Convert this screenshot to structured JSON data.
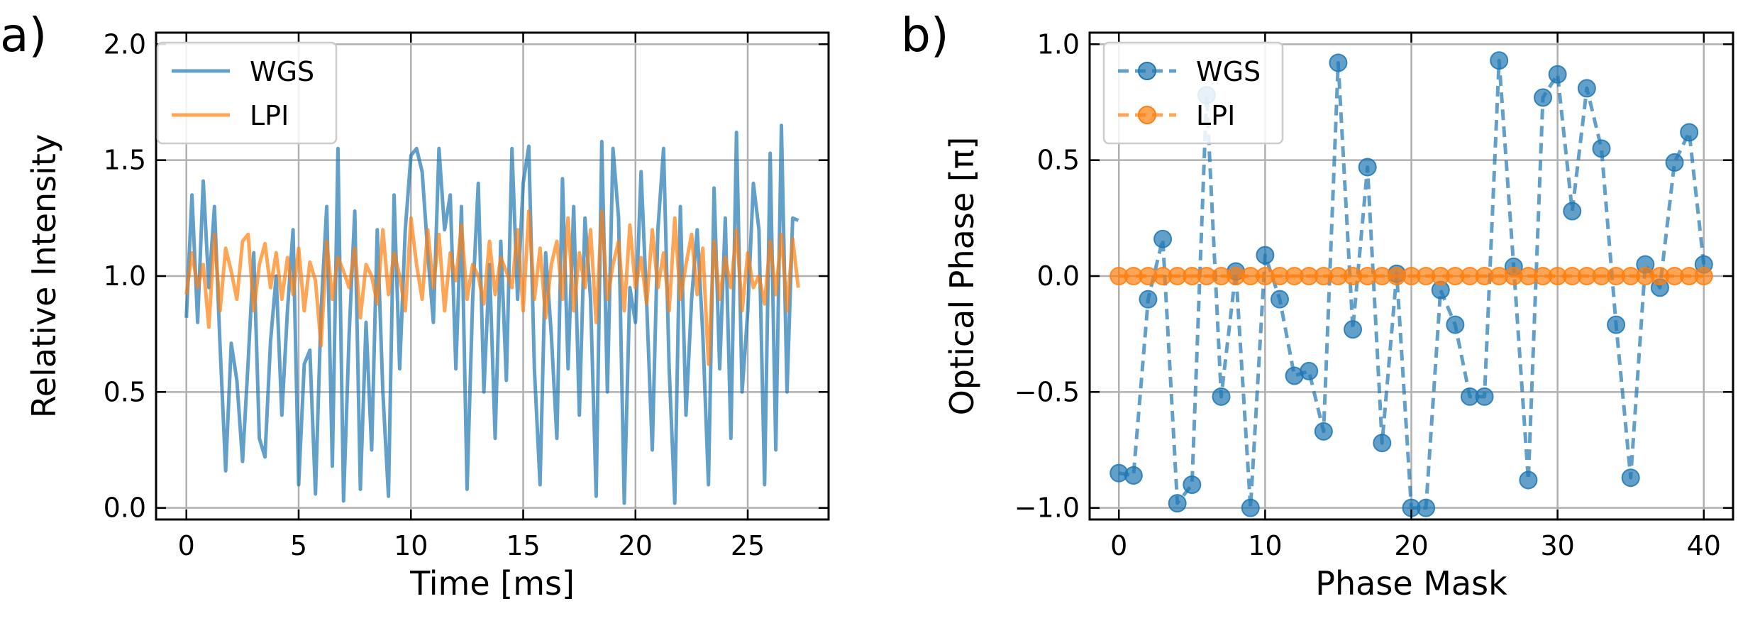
{
  "colors": {
    "wgs": "#1f77b4",
    "lpi": "#ff7f0e",
    "grid": "#b0b0b0"
  },
  "chart_data": [
    {
      "type": "line",
      "panel_label": "a)",
      "xlabel": "Time [ms]",
      "ylabel": "Relative Intensity",
      "xlim": [
        -1.35,
        28.6
      ],
      "ylim": [
        -0.05,
        2.05
      ],
      "xticks": [
        0,
        5,
        10,
        15,
        20,
        25
      ],
      "xtick_labels": [
        "0",
        "5",
        "10",
        "15",
        "20",
        "25"
      ],
      "yticks": [
        0.0,
        0.5,
        1.0,
        1.5,
        2.0
      ],
      "ytick_labels": [
        "0.0",
        "0.5",
        "1.0",
        "1.5",
        "2.0"
      ],
      "grid": true,
      "legend": "top-left",
      "series": [
        {
          "name": "WGS",
          "x": [
            0,
            0.25,
            0.5,
            0.75,
            1,
            1.25,
            1.5,
            1.75,
            2,
            2.25,
            2.5,
            2.75,
            3,
            3.25,
            3.5,
            3.75,
            4,
            4.25,
            4.5,
            4.75,
            5,
            5.25,
            5.5,
            5.75,
            6,
            6.25,
            6.5,
            6.75,
            7,
            7.25,
            7.5,
            7.75,
            8,
            8.25,
            8.5,
            8.75,
            9,
            9.25,
            9.5,
            9.75,
            10,
            10.25,
            10.5,
            10.75,
            11,
            11.25,
            11.5,
            11.75,
            12,
            12.25,
            12.5,
            12.75,
            13,
            13.25,
            13.5,
            13.75,
            14,
            14.25,
            14.5,
            14.75,
            15,
            15.25,
            15.5,
            15.75,
            16,
            16.25,
            16.5,
            16.75,
            17,
            17.25,
            17.5,
            17.75,
            18,
            18.25,
            18.5,
            18.75,
            19,
            19.25,
            19.5,
            19.75,
            20,
            20.25,
            20.5,
            20.75,
            21,
            21.25,
            21.5,
            21.75,
            22,
            22.25,
            22.5,
            22.75,
            23,
            23.25,
            23.5,
            23.75,
            24,
            24.25,
            24.5,
            24.75,
            25,
            25.25,
            25.5,
            25.75,
            26,
            26.25,
            26.5,
            26.75,
            27,
            27.25
          ],
          "values": [
            0.82,
            1.35,
            0.8,
            1.41,
            0.95,
            1.3,
            0.7,
            0.16,
            0.71,
            0.55,
            0.2,
            0.63,
            1.1,
            0.3,
            0.22,
            0.72,
            1.0,
            0.4,
            0.85,
            1.2,
            0.1,
            0.62,
            0.68,
            0.06,
            0.85,
            1.3,
            0.18,
            1.55,
            0.03,
            0.75,
            1.28,
            0.08,
            0.8,
            0.25,
            1.2,
            0.5,
            0.05,
            1.35,
            0.6,
            1.2,
            1.52,
            1.55,
            1.45,
            1.1,
            0.8,
            1.55,
            1.2,
            1.35,
            0.6,
            1.3,
            0.08,
            0.9,
            1.4,
            0.5,
            1.05,
            0.3,
            1.15,
            0.55,
            1.55,
            0.9,
            1.4,
            1.56,
            0.6,
            0.1,
            1.1,
            0.75,
            0.3,
            1.42,
            0.6,
            1.3,
            0.4,
            1.25,
            0.9,
            0.05,
            1.58,
            0.5,
            1.55,
            1.25,
            0.02,
            0.95,
            0.8,
            1.45,
            0.88,
            0.25,
            1.2,
            1.55,
            0.6,
            0.02,
            1.3,
            0.4,
            0.9,
            1.2,
            0.75,
            0.1,
            1.38,
            0.6,
            1.25,
            0.3,
            1.62,
            0.5,
            0.85,
            1.4,
            1.2,
            0.1,
            1.53,
            0.25,
            1.65,
            0.5,
            1.25,
            1.24
          ]
        },
        {
          "name": "LPI",
          "x": [
            0,
            0.25,
            0.5,
            0.75,
            1,
            1.25,
            1.5,
            1.75,
            2,
            2.25,
            2.5,
            2.75,
            3,
            3.25,
            3.5,
            3.75,
            4,
            4.25,
            4.5,
            4.75,
            5,
            5.25,
            5.5,
            5.75,
            6,
            6.25,
            6.5,
            6.75,
            7,
            7.25,
            7.5,
            7.75,
            8,
            8.25,
            8.5,
            8.75,
            9,
            9.25,
            9.5,
            9.75,
            10,
            10.25,
            10.5,
            10.75,
            11,
            11.25,
            11.5,
            11.75,
            12,
            12.25,
            12.5,
            12.75,
            13,
            13.25,
            13.5,
            13.75,
            14,
            14.25,
            14.5,
            14.75,
            15,
            15.25,
            15.5,
            15.75,
            16,
            16.25,
            16.5,
            16.75,
            17,
            17.25,
            17.5,
            17.75,
            18,
            18.25,
            18.5,
            18.75,
            19,
            19.25,
            19.5,
            19.75,
            20,
            20.25,
            20.5,
            20.75,
            21,
            21.25,
            21.5,
            21.75,
            22,
            22.25,
            22.5,
            22.75,
            23,
            23.25,
            23.5,
            23.75,
            24,
            24.25,
            24.5,
            24.75,
            25,
            25.25,
            25.5,
            25.75,
            26,
            26.25,
            26.5,
            26.75,
            27,
            27.25
          ],
          "values": [
            0.92,
            1.1,
            0.95,
            1.05,
            0.78,
            1.18,
            0.85,
            1.12,
            1.02,
            0.9,
            1.15,
            1.18,
            0.85,
            1.05,
            1.14,
            0.95,
            1.1,
            0.9,
            1.08,
            0.92,
            1.12,
            0.85,
            1.06,
            0.98,
            0.7,
            1.15,
            0.9,
            1.08,
            1.02,
            0.95,
            1.12,
            0.82,
            1.05,
            1.0,
            0.88,
            1.2,
            0.92,
            1.1,
            1.0,
            0.85,
            1.25,
            1.05,
            0.9,
            1.2,
            0.95,
            1.18,
            0.85,
            1.1,
            0.98,
            1.22,
            0.9,
            1.05,
            1.0,
            0.88,
            1.15,
            0.92,
            1.08,
            1.02,
            0.95,
            1.2,
            0.85,
            1.28,
            0.9,
            1.12,
            0.82,
            1.05,
            1.15,
            0.9,
            1.25,
            0.85,
            1.1,
            0.95,
            1.2,
            0.8,
            1.28,
            0.9,
            1.05,
            1.15,
            0.85,
            1.22,
            0.95,
            1.08,
            0.88,
            1.2,
            0.95,
            1.1,
            0.85,
            1.25,
            0.9,
            1.05,
            1.18,
            0.92,
            1.12,
            0.62,
            1.15,
            0.9,
            1.08,
            0.95,
            1.2,
            0.85,
            1.1,
            0.95,
            1.0,
            0.88,
            1.15,
            0.92,
            1.18,
            0.85,
            1.16,
            0.95
          ]
        }
      ]
    },
    {
      "type": "line",
      "panel_label": "b)",
      "xlabel": "Phase Mask",
      "ylabel": "Optical Phase [π]",
      "xlim": [
        -2,
        42
      ],
      "ylim": [
        -1.05,
        1.05
      ],
      "xticks": [
        0,
        10,
        20,
        30,
        40
      ],
      "xtick_labels": [
        "0",
        "10",
        "20",
        "30",
        "40"
      ],
      "yticks": [
        -1.0,
        -0.5,
        0.0,
        0.5,
        1.0
      ],
      "ytick_labels": [
        "−1.0",
        "−0.5",
        "0.0",
        "0.5",
        "1.0"
      ],
      "grid": true,
      "legend": "top-left",
      "series": [
        {
          "name": "WGS",
          "x": [
            0,
            1,
            2,
            3,
            4,
            5,
            6,
            7,
            8,
            9,
            10,
            11,
            12,
            13,
            14,
            15,
            16,
            17,
            18,
            19,
            20,
            21,
            22,
            23,
            24,
            25,
            26,
            27,
            28,
            29,
            30,
            31,
            32,
            33,
            34,
            35,
            36,
            37,
            38,
            39,
            40
          ],
          "values": [
            -0.85,
            -0.86,
            -0.1,
            0.16,
            -0.98,
            -0.9,
            0.78,
            -0.52,
            0.02,
            -1.0,
            0.09,
            -0.1,
            -0.43,
            -0.41,
            -0.67,
            0.92,
            -0.23,
            0.47,
            -0.72,
            0.01,
            -1.0,
            -1.0,
            -0.06,
            -0.21,
            -0.52,
            -0.52,
            0.93,
            0.04,
            -0.88,
            0.77,
            0.87,
            0.28,
            0.81,
            0.55,
            -0.21,
            -0.87,
            0.05,
            -0.05,
            0.49,
            0.62,
            0.05
          ]
        },
        {
          "name": "LPI",
          "x": [
            0,
            1,
            2,
            3,
            4,
            5,
            6,
            7,
            8,
            9,
            10,
            11,
            12,
            13,
            14,
            15,
            16,
            17,
            18,
            19,
            20,
            21,
            22,
            23,
            24,
            25,
            26,
            27,
            28,
            29,
            30,
            31,
            32,
            33,
            34,
            35,
            36,
            37,
            38,
            39,
            40
          ],
          "values": [
            0,
            0,
            0,
            0,
            0,
            0,
            0,
            0,
            0,
            0,
            0,
            0,
            0,
            0,
            0,
            0,
            0,
            0,
            0,
            0,
            0,
            0,
            0,
            0,
            0,
            0,
            0,
            0,
            0,
            0,
            0,
            0,
            0,
            0,
            0,
            0,
            0,
            0,
            0,
            0,
            0
          ]
        }
      ]
    }
  ]
}
